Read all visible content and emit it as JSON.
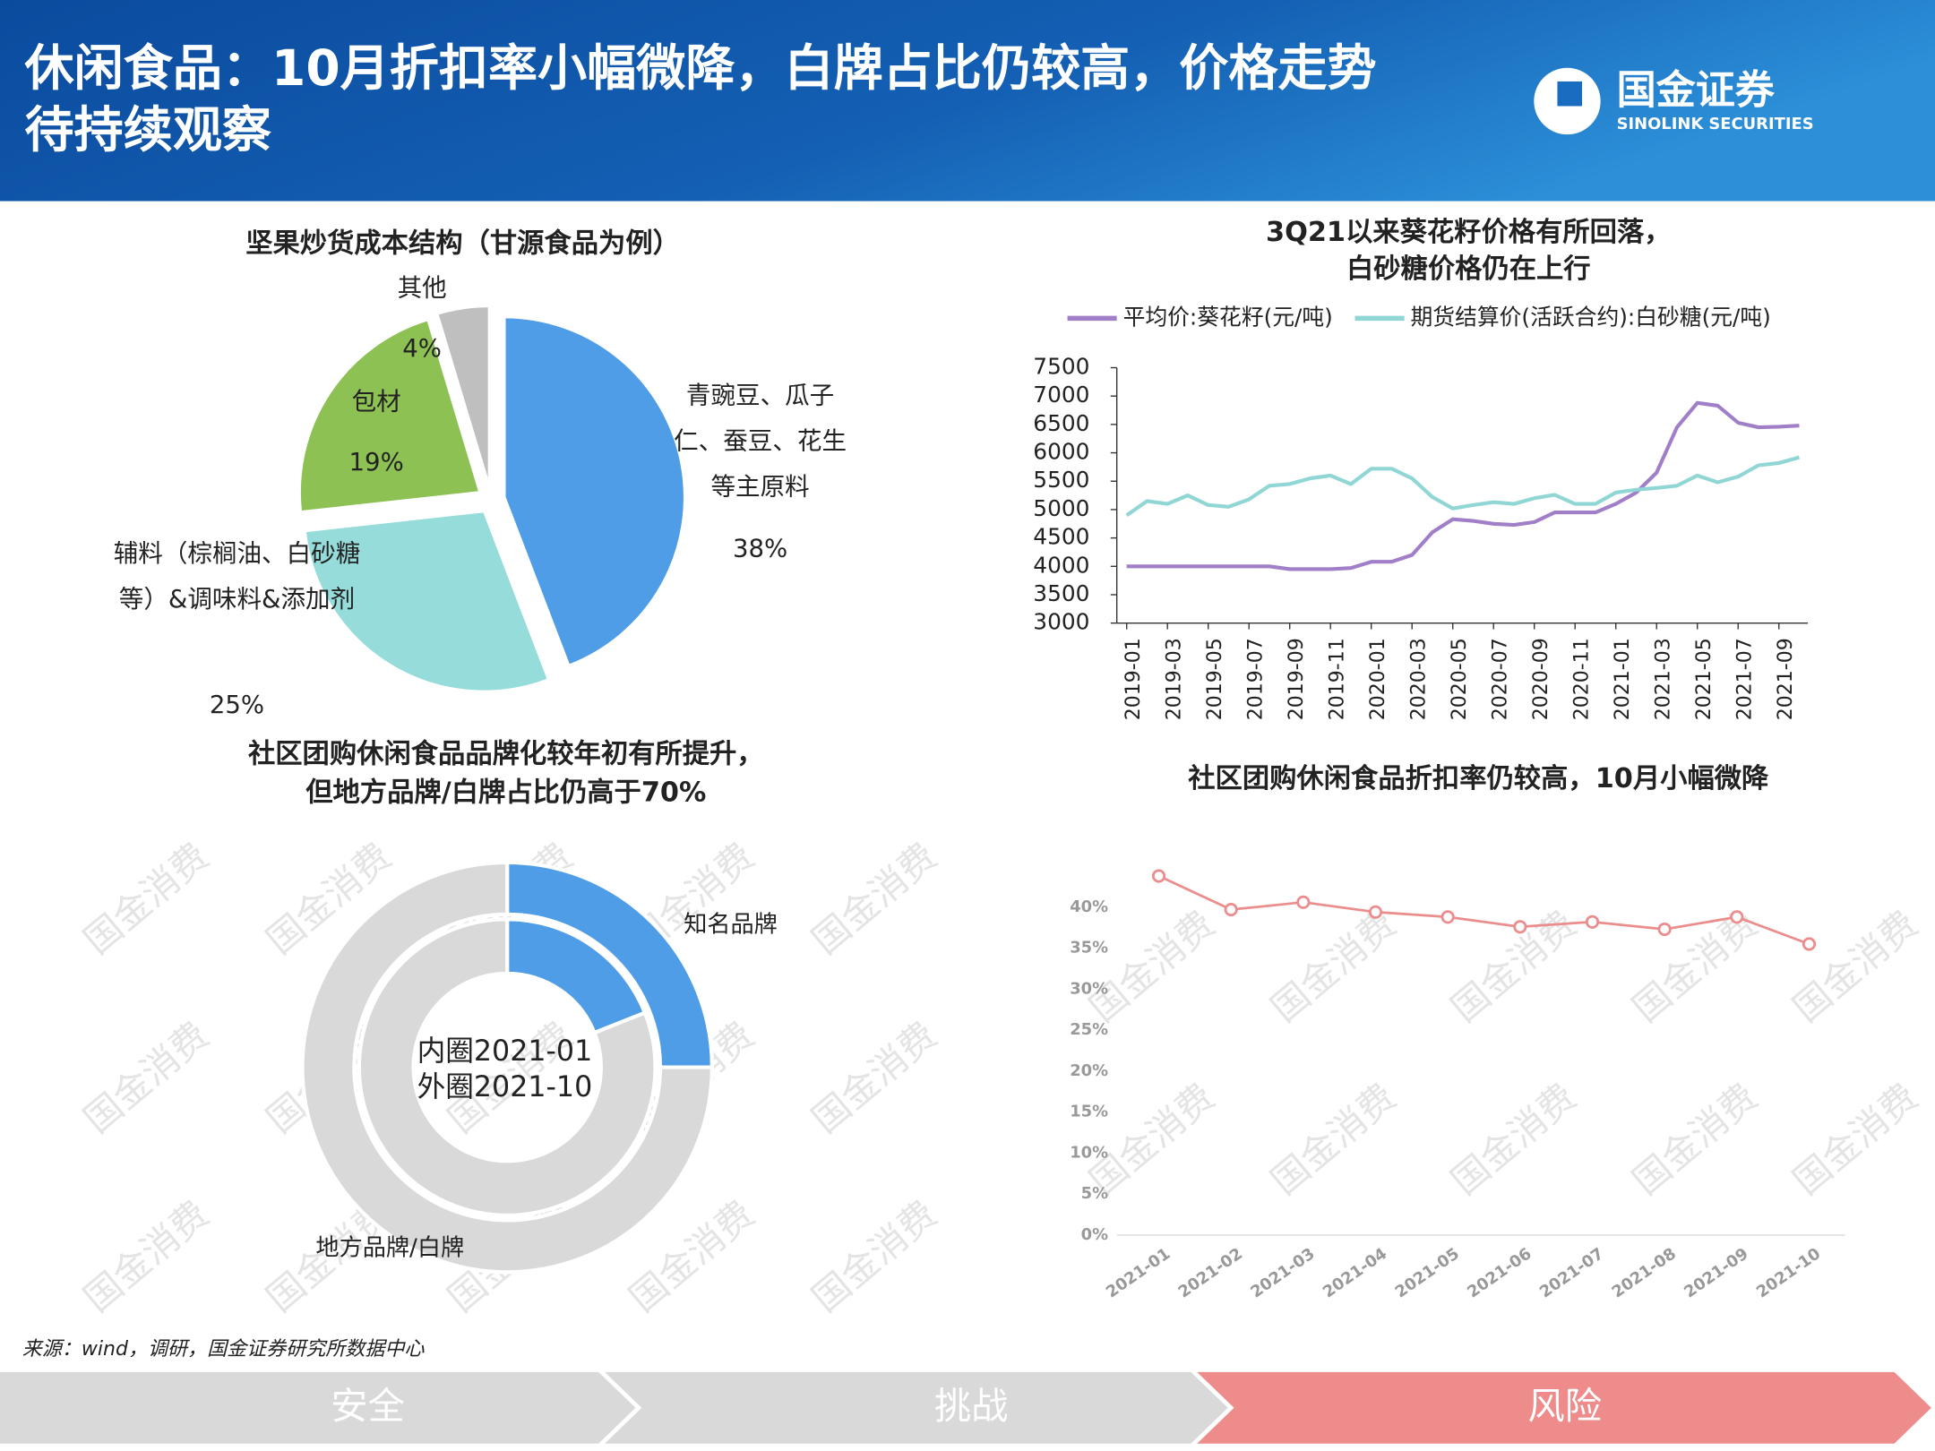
{
  "header": {
    "title": [
      "休闲食品：10月折扣率小幅微降，白牌占比仍较高，价格走势",
      "待持续观察"
    ],
    "logo": [
      "国金证券",
      "SINOLINK SECURITIES"
    ]
  },
  "watermark": "国金消费",
  "source": "来源：wind，调研，国金证券研究所数据中心",
  "nav": [
    "安全",
    "挑战",
    "风险"
  ],
  "chart_data": [
    {
      "type": "pie",
      "title": "坚果炒货成本结构（甘源食品为例）",
      "categories": [
        "青豌豆、瓜子仁、蚕豆、花生等主原料",
        "辅料（棕榈油、白砂糖等）&调味料&添加剂",
        "包材",
        "其他"
      ],
      "values": [
        38,
        25,
        19,
        4
      ],
      "value_labels": [
        "38%",
        "25%",
        "19%",
        "4%"
      ],
      "colors": [
        "#4f9de6",
        "#96dcda",
        "#8dc153",
        "#bfbfbf"
      ]
    },
    {
      "type": "line",
      "title": [
        "3Q21以来葵花籽价格有所回落，",
        "白砂糖价格仍在上行"
      ],
      "x": [
        "2019-01",
        null,
        "2019-03",
        null,
        "2019-05",
        null,
        "2019-07",
        null,
        "2019-09",
        null,
        "2019-11",
        null,
        "2020-01",
        null,
        "2020-03",
        null,
        "2020-05",
        null,
        "2020-07",
        null,
        "2020-09",
        null,
        "2020-11",
        null,
        "2021-01",
        null,
        "2021-03",
        null,
        "2021-05",
        null,
        "2021-07",
        null,
        "2021-09",
        null
      ],
      "series": [
        {
          "name": "平均价:葵花籽(元/吨)",
          "color": "#a07fc8",
          "values": [
            4000,
            4000,
            4000,
            4000,
            4000,
            4000,
            4000,
            4000,
            3950,
            3950,
            3950,
            3970,
            4080,
            4080,
            4200,
            4600,
            4830,
            4800,
            4750,
            4730,
            4780,
            4950,
            4950,
            4950,
            5100,
            5300,
            5650,
            6450,
            6880,
            6830,
            6530,
            6450,
            6460,
            6480
          ]
        },
        {
          "name": "期货结算价(活跃合约):白砂糖(元/吨)",
          "color": "#8fd6d4",
          "values": [
            4900,
            5150,
            5100,
            5250,
            5080,
            5050,
            5180,
            5420,
            5450,
            5550,
            5600,
            5450,
            5720,
            5720,
            5550,
            5220,
            5020,
            5080,
            5130,
            5100,
            5200,
            5260,
            5100,
            5100,
            5300,
            5350,
            5380,
            5420,
            5600,
            5480,
            5580,
            5780,
            5820,
            5920
          ]
        }
      ],
      "ylim": [
        3000,
        7500
      ],
      "yticks": [
        3000,
        3500,
        4000,
        4500,
        5000,
        5500,
        6000,
        6500,
        7000,
        7500
      ],
      "legend": "top"
    },
    {
      "type": "donut",
      "title": [
        "社区团购休闲食品品牌化较年初有所提升，",
        "但地方品牌/白牌占比仍高于70%"
      ],
      "categories": [
        "知名品牌",
        "地方品牌/白牌"
      ],
      "colors": [
        "#4f9de6",
        "#d9d9d9"
      ],
      "center_text": [
        "内圈2021-01",
        "外圈2021-10"
      ],
      "series": [
        {
          "values": [
            19,
            81
          ]
        },
        {
          "values": [
            25,
            75
          ]
        }
      ]
    },
    {
      "type": "line",
      "title": "社区团购休闲食品折扣率仍较高，10月小幅微降",
      "categories": [
        "2021-01",
        "2021-02",
        "2021-03",
        "2021-04",
        "2021-05",
        "2021-06",
        "2021-07",
        "2021-08",
        "2021-09",
        "2021-10"
      ],
      "values": [
        43.8,
        39.7,
        40.6,
        39.4,
        38.8,
        37.6,
        38.2,
        37.3,
        38.8,
        35.5
      ],
      "color": "#ec8d8d",
      "ylim": [
        0,
        45
      ],
      "yticks": [
        {
          "value": 0,
          "label": "0%"
        },
        {
          "value": 5,
          "label": "5%"
        },
        {
          "value": 10,
          "label": "10%"
        },
        {
          "value": 15,
          "label": "15%"
        },
        {
          "value": 20,
          "label": "20%"
        },
        {
          "value": 25,
          "label": "25%"
        },
        {
          "value": 30,
          "label": "30%"
        },
        {
          "value": 35,
          "label": "35%"
        },
        {
          "value": 40,
          "label": "40%"
        }
      ]
    }
  ]
}
